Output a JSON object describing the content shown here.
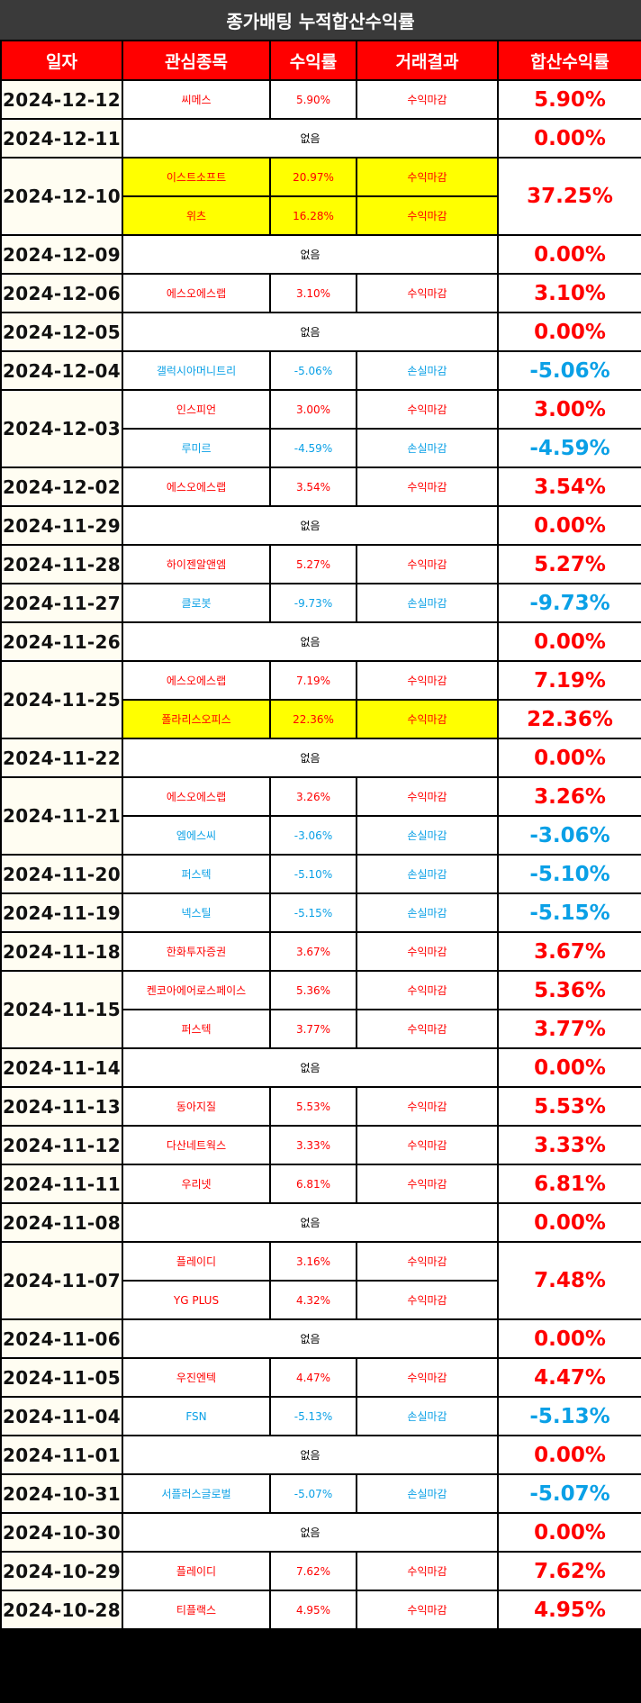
{
  "title": "종가배팅 누적합산수익률",
  "headers": [
    "일자",
    "관심종목",
    "수익률",
    "거래결과",
    "합산수익률"
  ],
  "none_label": "없음",
  "days": [
    {
      "date": "2024-12-12",
      "total": "5.90%",
      "trades": [
        {
          "stock": "씨메스",
          "rate": "5.90%",
          "result": "수익마감"
        }
      ]
    },
    {
      "date": "2024-12-11",
      "total": "0.00%",
      "trades": []
    },
    {
      "date": "2024-12-10",
      "total": "37.25%",
      "trades": [
        {
          "stock": "이스트소프트",
          "rate": "20.97%",
          "result": "수익마감",
          "highlight": true
        },
        {
          "stock": "위츠",
          "rate": "16.28%",
          "result": "수익마감",
          "highlight": true
        }
      ]
    },
    {
      "date": "2024-12-09",
      "total": "0.00%",
      "trades": []
    },
    {
      "date": "2024-12-06",
      "total": "3.10%",
      "trades": [
        {
          "stock": "에스오에스랩",
          "rate": "3.10%",
          "result": "수익마감"
        }
      ]
    },
    {
      "date": "2024-12-05",
      "total": "0.00%",
      "trades": []
    },
    {
      "date": "2024-12-04",
      "total": "-5.06%",
      "trades": [
        {
          "stock": "갤럭시아머니트리",
          "rate": "-5.06%",
          "result": "손실마감"
        }
      ]
    },
    {
      "date": "2024-12-03",
      "totals": [
        "3.00%",
        "-4.59%"
      ],
      "trades": [
        {
          "stock": "인스피언",
          "rate": "3.00%",
          "result": "수익마감"
        },
        {
          "stock": "루미르",
          "rate": "-4.59%",
          "result": "손실마감"
        }
      ]
    },
    {
      "date": "2024-12-02",
      "total": "3.54%",
      "trades": [
        {
          "stock": "에스오에스랩",
          "rate": "3.54%",
          "result": "수익마감"
        }
      ]
    },
    {
      "date": "2024-11-29",
      "total": "0.00%",
      "trades": []
    },
    {
      "date": "2024-11-28",
      "total": "5.27%",
      "trades": [
        {
          "stock": "하이젠알앤엠",
          "rate": "5.27%",
          "result": "수익마감"
        }
      ]
    },
    {
      "date": "2024-11-27",
      "total": "-9.73%",
      "trades": [
        {
          "stock": "클로봇",
          "rate": "-9.73%",
          "result": "손실마감"
        }
      ]
    },
    {
      "date": "2024-11-26",
      "total": "0.00%",
      "trades": []
    },
    {
      "date": "2024-11-25",
      "totals": [
        "7.19%",
        "22.36%"
      ],
      "trades": [
        {
          "stock": "에스오에스랩",
          "rate": "7.19%",
          "result": "수익마감"
        },
        {
          "stock": "폴라리스오피스",
          "rate": "22.36%",
          "result": "수익마감",
          "highlight": true
        }
      ]
    },
    {
      "date": "2024-11-22",
      "total": "0.00%",
      "trades": []
    },
    {
      "date": "2024-11-21",
      "totals": [
        "3.26%",
        "-3.06%"
      ],
      "trades": [
        {
          "stock": "에스오에스랩",
          "rate": "3.26%",
          "result": "수익마감"
        },
        {
          "stock": "엠에스씨",
          "rate": "-3.06%",
          "result": "손실마감"
        }
      ]
    },
    {
      "date": "2024-11-20",
      "total": "-5.10%",
      "trades": [
        {
          "stock": "퍼스텍",
          "rate": "-5.10%",
          "result": "손실마감"
        }
      ]
    },
    {
      "date": "2024-11-19",
      "total": "-5.15%",
      "trades": [
        {
          "stock": "넥스틸",
          "rate": "-5.15%",
          "result": "손실마감"
        }
      ]
    },
    {
      "date": "2024-11-18",
      "total": "3.67%",
      "trades": [
        {
          "stock": "한화투자증권",
          "rate": "3.67%",
          "result": "수익마감"
        }
      ]
    },
    {
      "date": "2024-11-15",
      "totals": [
        "5.36%",
        "3.77%"
      ],
      "trades": [
        {
          "stock": "켄코아에어로스페이스",
          "rate": "5.36%",
          "result": "수익마감"
        },
        {
          "stock": "퍼스텍",
          "rate": "3.77%",
          "result": "수익마감"
        }
      ]
    },
    {
      "date": "2024-11-14",
      "total": "0.00%",
      "trades": []
    },
    {
      "date": "2024-11-13",
      "total": "5.53%",
      "trades": [
        {
          "stock": "동아지질",
          "rate": "5.53%",
          "result": "수익마감"
        }
      ]
    },
    {
      "date": "2024-11-12",
      "total": "3.33%",
      "trades": [
        {
          "stock": "다산네트웍스",
          "rate": "3.33%",
          "result": "수익마감"
        }
      ]
    },
    {
      "date": "2024-11-11",
      "total": "6.81%",
      "trades": [
        {
          "stock": "우리넷",
          "rate": "6.81%",
          "result": "수익마감"
        }
      ]
    },
    {
      "date": "2024-11-08",
      "total": "0.00%",
      "trades": []
    },
    {
      "date": "2024-11-07",
      "total": "7.48%",
      "trades": [
        {
          "stock": "플레이디",
          "rate": "3.16%",
          "result": "수익마감"
        },
        {
          "stock": "YG PLUS",
          "rate": "4.32%",
          "result": "수익마감"
        }
      ]
    },
    {
      "date": "2024-11-06",
      "total": "0.00%",
      "trades": []
    },
    {
      "date": "2024-11-05",
      "total": "4.47%",
      "trades": [
        {
          "stock": "우진엔텍",
          "rate": "4.47%",
          "result": "수익마감"
        }
      ]
    },
    {
      "date": "2024-11-04",
      "total": "-5.13%",
      "trades": [
        {
          "stock": "FSN",
          "rate": "-5.13%",
          "result": "손실마감"
        }
      ]
    },
    {
      "date": "2024-11-01",
      "total": "0.00%",
      "trades": []
    },
    {
      "date": "2024-10-31",
      "total": "-5.07%",
      "trades": [
        {
          "stock": "서플러스글로벌",
          "rate": "-5.07%",
          "result": "손실마감"
        }
      ]
    },
    {
      "date": "2024-10-30",
      "total": "0.00%",
      "trades": []
    },
    {
      "date": "2024-10-29",
      "total": "7.62%",
      "trades": [
        {
          "stock": "플레이디",
          "rate": "7.62%",
          "result": "수익마감"
        }
      ]
    },
    {
      "date": "2024-10-28",
      "total": "4.95%",
      "trades": [
        {
          "stock": "티플랙스",
          "rate": "4.95%",
          "result": "수익마감"
        }
      ]
    }
  ],
  "colors": {
    "header_bg": "#ff0000",
    "title_bg": "#3a3a3a",
    "profit": "#ff0000",
    "loss": "#0aa0e6",
    "highlight": "#ffff00"
  }
}
